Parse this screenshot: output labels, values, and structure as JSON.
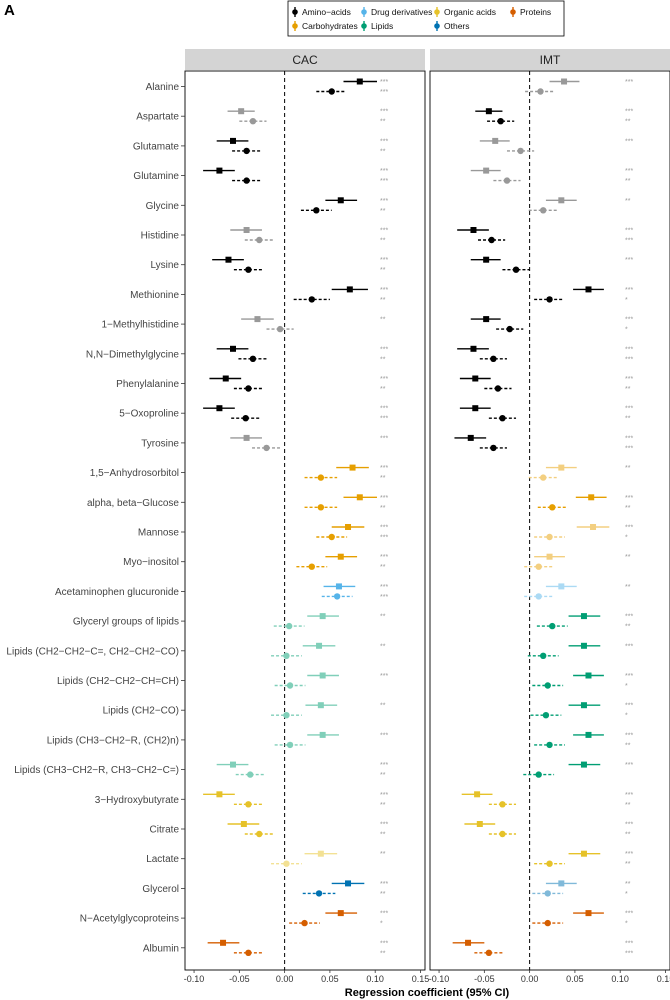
{
  "panel_label": "A",
  "chart_data": {
    "type": "forest",
    "xlabel": "Regression coefficient (95% CI)",
    "xlim": [
      -0.11,
      0.155
    ],
    "xticks": [
      -0.1,
      -0.05,
      0.0,
      0.05,
      0.1,
      0.15
    ],
    "xtick_labels": [
      "-0.10",
      "-0.05",
      "0.00",
      "0.05",
      "0.10",
      "0.15"
    ],
    "reference_line": 0,
    "panels": [
      "CAC",
      "IMT"
    ],
    "legend": [
      {
        "name": "Amino−acids",
        "color": "#000000"
      },
      {
        "name": "Carbohydrates",
        "color": "#E69F00"
      },
      {
        "name": "Drug derivatives",
        "color": "#56B4E9"
      },
      {
        "name": "Lipids",
        "color": "#009E73"
      },
      {
        "name": "Organic acids",
        "color": "#E6C229"
      },
      {
        "name": "Others",
        "color": "#0072B2"
      },
      {
        "name": "Proteins",
        "color": "#D55E00"
      }
    ],
    "models": [
      "model 1 (square, solid line)",
      "model 2 (circle, dashed line)"
    ],
    "metabolites": [
      {
        "name": "Alanine",
        "group": "Amino−acids",
        "CAC": [
          [
            0.083,
            0.065,
            0.102,
            "***",
            1
          ],
          [
            0.052,
            0.035,
            0.068,
            "***",
            1
          ]
        ],
        "IMT": [
          [
            0.038,
            0.022,
            0.055,
            "***",
            0
          ],
          [
            0.012,
            -0.005,
            0.028,
            "",
            0
          ]
        ]
      },
      {
        "name": "Aspartate",
        "group": "Amino−acids",
        "CAC": [
          [
            -0.048,
            -0.063,
            -0.033,
            "***",
            0
          ],
          [
            -0.035,
            -0.05,
            -0.02,
            "**",
            0
          ]
        ],
        "IMT": [
          [
            -0.045,
            -0.06,
            -0.03,
            "***",
            1
          ],
          [
            -0.032,
            -0.047,
            -0.017,
            "**",
            1
          ]
        ]
      },
      {
        "name": "Glutamate",
        "group": "Amino−acids",
        "CAC": [
          [
            -0.057,
            -0.075,
            -0.04,
            "***",
            1
          ],
          [
            -0.042,
            -0.058,
            -0.026,
            "**",
            1
          ]
        ],
        "IMT": [
          [
            -0.038,
            -0.055,
            -0.022,
            "***",
            0
          ],
          [
            -0.01,
            -0.025,
            0.005,
            "",
            0
          ]
        ]
      },
      {
        "name": "Glutamine",
        "group": "Amino−acids",
        "CAC": [
          [
            -0.072,
            -0.09,
            -0.055,
            "***",
            1
          ],
          [
            -0.042,
            -0.058,
            -0.026,
            "***",
            1
          ]
        ],
        "IMT": [
          [
            -0.048,
            -0.065,
            -0.032,
            "***",
            0
          ],
          [
            -0.025,
            -0.04,
            -0.01,
            "**",
            0
          ]
        ]
      },
      {
        "name": "Glycine",
        "group": "Amino−acids",
        "CAC": [
          [
            0.062,
            0.045,
            0.08,
            "***",
            1
          ],
          [
            0.035,
            0.018,
            0.052,
            "**",
            1
          ]
        ],
        "IMT": [
          [
            0.035,
            0.018,
            0.052,
            "**",
            0
          ],
          [
            0.015,
            -0.001,
            0.031,
            "",
            0
          ]
        ]
      },
      {
        "name": "Histidine",
        "group": "Amino−acids",
        "CAC": [
          [
            -0.042,
            -0.06,
            -0.025,
            "***",
            0
          ],
          [
            -0.028,
            -0.044,
            -0.012,
            "**",
            0
          ]
        ],
        "IMT": [
          [
            -0.062,
            -0.08,
            -0.045,
            "***",
            1
          ],
          [
            -0.042,
            -0.057,
            -0.027,
            "***",
            1
          ]
        ]
      },
      {
        "name": "Lysine",
        "group": "Amino−acids",
        "CAC": [
          [
            -0.062,
            -0.08,
            -0.045,
            "***",
            1
          ],
          [
            -0.04,
            -0.056,
            -0.024,
            "**",
            1
          ]
        ],
        "IMT": [
          [
            -0.048,
            -0.065,
            -0.032,
            "***",
            1
          ],
          [
            -0.015,
            -0.03,
            0.0,
            "",
            1
          ]
        ]
      },
      {
        "name": "Methionine",
        "group": "Amino−acids",
        "CAC": [
          [
            0.072,
            0.052,
            0.092,
            "***",
            1
          ],
          [
            0.03,
            0.01,
            0.05,
            "**",
            1
          ]
        ],
        "IMT": [
          [
            0.065,
            0.048,
            0.082,
            "***",
            1
          ],
          [
            0.022,
            0.005,
            0.038,
            "*",
            1
          ]
        ]
      },
      {
        "name": "1−Methylhistidine",
        "group": "Amino−acids",
        "CAC": [
          [
            -0.03,
            -0.048,
            -0.012,
            "**",
            0
          ],
          [
            -0.005,
            -0.02,
            0.01,
            "",
            0
          ]
        ],
        "IMT": [
          [
            -0.048,
            -0.065,
            -0.032,
            "***",
            1
          ],
          [
            -0.022,
            -0.037,
            -0.007,
            "*",
            1
          ]
        ]
      },
      {
        "name": "N,N−Dimethylglycine",
        "group": "Amino−acids",
        "CAC": [
          [
            -0.057,
            -0.075,
            -0.04,
            "***",
            1
          ],
          [
            -0.035,
            -0.051,
            -0.019,
            "**",
            1
          ]
        ],
        "IMT": [
          [
            -0.062,
            -0.08,
            -0.045,
            "***",
            1
          ],
          [
            -0.04,
            -0.055,
            -0.025,
            "***",
            1
          ]
        ]
      },
      {
        "name": "Phenylalanine",
        "group": "Amino−acids",
        "CAC": [
          [
            -0.065,
            -0.083,
            -0.048,
            "***",
            1
          ],
          [
            -0.04,
            -0.056,
            -0.024,
            "**",
            1
          ]
        ],
        "IMT": [
          [
            -0.06,
            -0.077,
            -0.043,
            "***",
            1
          ],
          [
            -0.035,
            -0.05,
            -0.02,
            "**",
            1
          ]
        ]
      },
      {
        "name": "5−Oxoproline",
        "group": "Amino−acids",
        "CAC": [
          [
            -0.072,
            -0.09,
            -0.055,
            "***",
            1
          ],
          [
            -0.043,
            -0.059,
            -0.027,
            "***",
            1
          ]
        ],
        "IMT": [
          [
            -0.06,
            -0.077,
            -0.043,
            "***",
            1
          ],
          [
            -0.03,
            -0.045,
            -0.015,
            "**",
            1
          ]
        ]
      },
      {
        "name": "Tyrosine",
        "group": "Amino−acids",
        "CAC": [
          [
            -0.042,
            -0.06,
            -0.025,
            "***",
            0
          ],
          [
            -0.02,
            -0.036,
            -0.004,
            "",
            0
          ]
        ],
        "IMT": [
          [
            -0.065,
            -0.083,
            -0.048,
            "***",
            1
          ],
          [
            -0.04,
            -0.055,
            -0.025,
            "***",
            1
          ]
        ]
      },
      {
        "name": "1,5−Anhydrosorbitol",
        "group": "Carbohydrates",
        "CAC": [
          [
            0.075,
            0.057,
            0.093,
            "***",
            1
          ],
          [
            0.04,
            0.022,
            0.058,
            "**",
            1
          ]
        ],
        "IMT": [
          [
            0.035,
            0.018,
            0.052,
            "**",
            0
          ],
          [
            0.015,
            -0.001,
            0.031,
            "",
            0
          ]
        ]
      },
      {
        "name": "alpha, beta−Glucose",
        "group": "Carbohydrates",
        "CAC": [
          [
            0.083,
            0.065,
            0.102,
            "***",
            1
          ],
          [
            0.04,
            0.022,
            0.058,
            "**",
            1
          ]
        ],
        "IMT": [
          [
            0.068,
            0.051,
            0.085,
            "***",
            1
          ],
          [
            0.025,
            0.009,
            0.041,
            "**",
            1
          ]
        ]
      },
      {
        "name": "Mannose",
        "group": "Carbohydrates",
        "CAC": [
          [
            0.07,
            0.052,
            0.088,
            "***",
            1
          ],
          [
            0.052,
            0.035,
            0.069,
            "***",
            1
          ]
        ],
        "IMT": [
          [
            0.07,
            0.052,
            0.088,
            "***",
            0
          ],
          [
            0.022,
            0.005,
            0.039,
            "*",
            0
          ]
        ]
      },
      {
        "name": "Myo−inositol",
        "group": "Carbohydrates",
        "CAC": [
          [
            0.062,
            0.045,
            0.08,
            "***",
            1
          ],
          [
            0.03,
            0.013,
            0.047,
            "**",
            1
          ]
        ],
        "IMT": [
          [
            0.022,
            0.005,
            0.039,
            "**",
            0
          ],
          [
            0.01,
            -0.006,
            0.026,
            "",
            0
          ]
        ]
      },
      {
        "name": "Acetaminophen glucuronide",
        "group": "Drug derivatives",
        "CAC": [
          [
            0.06,
            0.043,
            0.078,
            "***",
            1
          ],
          [
            0.058,
            0.041,
            0.075,
            "***",
            1
          ]
        ],
        "IMT": [
          [
            0.035,
            0.018,
            0.052,
            "**",
            0
          ],
          [
            0.01,
            -0.006,
            0.026,
            "",
            0
          ]
        ]
      },
      {
        "name": "Glyceryl groups of lipids",
        "group": "Lipids",
        "CAC": [
          [
            0.042,
            0.025,
            0.06,
            "**",
            0
          ],
          [
            0.005,
            -0.012,
            0.022,
            "",
            0
          ]
        ],
        "IMT": [
          [
            0.06,
            0.043,
            0.078,
            "***",
            1
          ],
          [
            0.025,
            0.008,
            0.042,
            "**",
            1
          ]
        ]
      },
      {
        "name": "Lipids (CH2−CH2−C=, CH2−CH2−CO)",
        "group": "Lipids",
        "CAC": [
          [
            0.038,
            0.02,
            0.056,
            "**",
            0
          ],
          [
            0.002,
            -0.015,
            0.019,
            "",
            0
          ]
        ],
        "IMT": [
          [
            0.06,
            0.043,
            0.078,
            "***",
            1
          ],
          [
            0.015,
            -0.002,
            0.032,
            "",
            1
          ]
        ]
      },
      {
        "name": "Lipids (CH2−CH2−CH=CH)",
        "group": "Lipids",
        "CAC": [
          [
            0.042,
            0.025,
            0.06,
            "***",
            0
          ],
          [
            0.006,
            -0.011,
            0.023,
            "",
            0
          ]
        ],
        "IMT": [
          [
            0.065,
            0.048,
            0.082,
            "***",
            1
          ],
          [
            0.02,
            0.003,
            0.037,
            "*",
            1
          ]
        ]
      },
      {
        "name": "Lipids (CH2−CO)",
        "group": "Lipids",
        "CAC": [
          [
            0.04,
            0.023,
            0.058,
            "**",
            0
          ],
          [
            0.002,
            -0.015,
            0.019,
            "",
            0
          ]
        ],
        "IMT": [
          [
            0.06,
            0.043,
            0.078,
            "***",
            1
          ],
          [
            0.018,
            0.001,
            0.035,
            "*",
            1
          ]
        ]
      },
      {
        "name": "Lipids (CH3−CH2−R, (CH2)n)",
        "group": "Lipids",
        "CAC": [
          [
            0.042,
            0.025,
            0.06,
            "***",
            0
          ],
          [
            0.006,
            -0.011,
            0.023,
            "",
            0
          ]
        ],
        "IMT": [
          [
            0.065,
            0.048,
            0.082,
            "***",
            1
          ],
          [
            0.022,
            0.005,
            0.039,
            "**",
            1
          ]
        ]
      },
      {
        "name": "Lipids (CH3−CH2−R, CH3−CH2−C=)",
        "group": "Lipids",
        "CAC": [
          [
            -0.057,
            -0.075,
            -0.04,
            "***",
            0
          ],
          [
            -0.038,
            -0.054,
            -0.022,
            "**",
            0
          ]
        ],
        "IMT": [
          [
            0.06,
            0.043,
            0.078,
            "***",
            1
          ],
          [
            0.01,
            -0.007,
            0.027,
            "",
            1
          ]
        ]
      },
      {
        "name": "3−Hydroxybutyrate",
        "group": "Organic acids",
        "CAC": [
          [
            -0.072,
            -0.09,
            -0.055,
            "***",
            1
          ],
          [
            -0.04,
            -0.056,
            -0.024,
            "**",
            1
          ]
        ],
        "IMT": [
          [
            -0.058,
            -0.075,
            -0.041,
            "***",
            1
          ],
          [
            -0.03,
            -0.045,
            -0.015,
            "**",
            1
          ]
        ]
      },
      {
        "name": "Citrate",
        "group": "Organic acids",
        "CAC": [
          [
            -0.045,
            -0.063,
            -0.028,
            "***",
            1
          ],
          [
            -0.028,
            -0.044,
            -0.012,
            "**",
            1
          ]
        ],
        "IMT": [
          [
            -0.055,
            -0.072,
            -0.038,
            "***",
            1
          ],
          [
            -0.03,
            -0.045,
            -0.015,
            "**",
            1
          ]
        ]
      },
      {
        "name": "Lactate",
        "group": "Organic acids",
        "CAC": [
          [
            0.04,
            0.022,
            0.058,
            "**",
            0
          ],
          [
            0.002,
            -0.015,
            0.019,
            "",
            0
          ]
        ],
        "IMT": [
          [
            0.06,
            0.043,
            0.078,
            "***",
            1
          ],
          [
            0.022,
            0.005,
            0.039,
            "**",
            1
          ]
        ]
      },
      {
        "name": "Glycerol",
        "group": "Others",
        "CAC": [
          [
            0.07,
            0.052,
            0.088,
            "***",
            1
          ],
          [
            0.038,
            0.02,
            0.056,
            "**",
            1
          ]
        ],
        "IMT": [
          [
            0.035,
            0.018,
            0.052,
            "**",
            0
          ],
          [
            0.02,
            0.003,
            0.037,
            "*",
            0
          ]
        ]
      },
      {
        "name": "N−Acetylglycoproteins",
        "group": "Proteins",
        "CAC": [
          [
            0.062,
            0.045,
            0.08,
            "***",
            1
          ],
          [
            0.022,
            0.005,
            0.039,
            "*",
            1
          ]
        ],
        "IMT": [
          [
            0.065,
            0.048,
            0.082,
            "***",
            1
          ],
          [
            0.02,
            0.003,
            0.037,
            "*",
            1
          ]
        ]
      },
      {
        "name": "Albumin",
        "group": "Proteins",
        "CAC": [
          [
            -0.068,
            -0.085,
            -0.05,
            "***",
            1
          ],
          [
            -0.04,
            -0.056,
            -0.024,
            "**",
            1
          ]
        ],
        "IMT": [
          [
            -0.068,
            -0.085,
            -0.05,
            "***",
            1
          ],
          [
            -0.045,
            -0.061,
            -0.029,
            "***",
            1
          ]
        ]
      }
    ]
  }
}
